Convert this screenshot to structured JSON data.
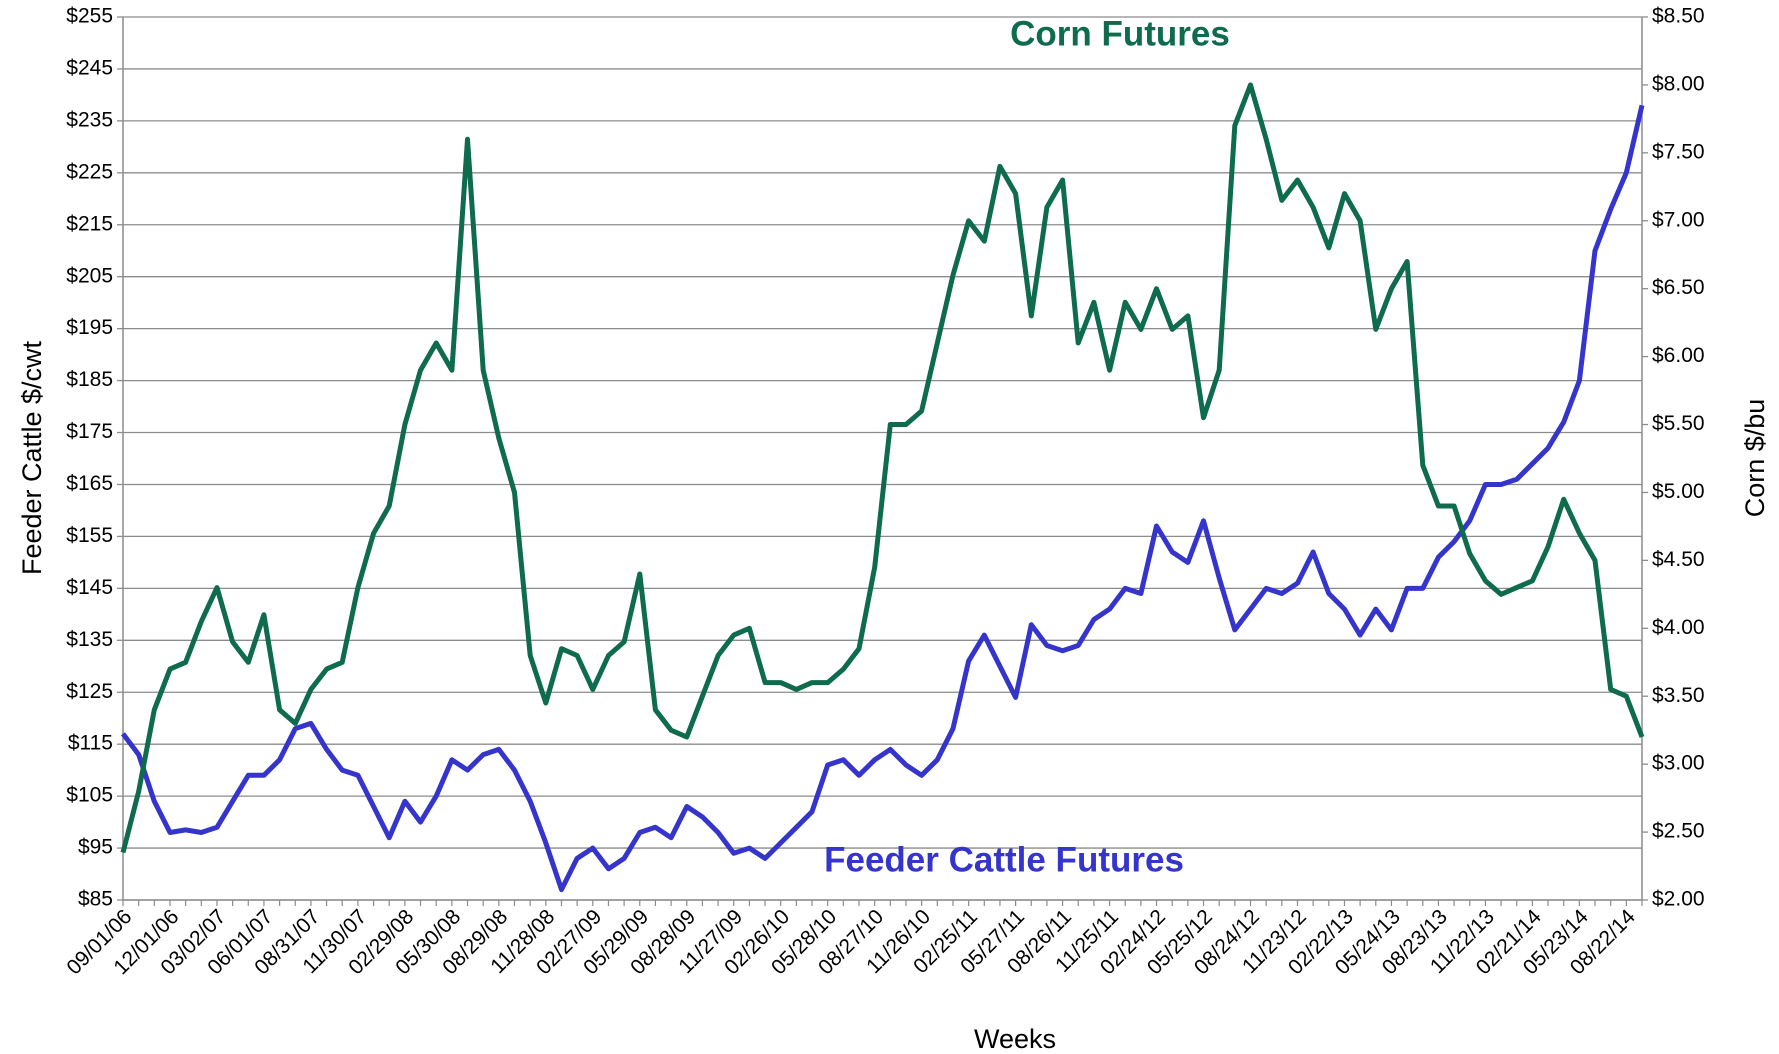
{
  "chart_data": {
    "type": "line",
    "x_label": "Weeks",
    "y_label": "Feeder Cattle $/cwt",
    "y2_label": "Corn $/bu",
    "categories": [
      "09/01/06",
      null,
      null,
      "12/01/06",
      null,
      null,
      "03/02/07",
      null,
      null,
      "06/01/07",
      null,
      null,
      "08/31/07",
      null,
      null,
      "11/30/07",
      null,
      null,
      "02/29/08",
      null,
      null,
      "05/30/08",
      null,
      null,
      "08/29/08",
      null,
      null,
      "11/28/08",
      null,
      null,
      "02/27/09",
      null,
      null,
      "05/29/09",
      null,
      null,
      "08/28/09",
      null,
      null,
      "11/27/09",
      null,
      null,
      "02/26/10",
      null,
      null,
      "05/28/10",
      null,
      null,
      "08/27/10",
      null,
      null,
      "11/26/10",
      null,
      null,
      "02/25/11",
      null,
      null,
      "05/27/11",
      null,
      null,
      "08/26/11",
      null,
      null,
      "11/25/11",
      null,
      null,
      "02/24/12",
      null,
      null,
      "05/25/12",
      null,
      null,
      "08/24/12",
      null,
      null,
      "11/23/12",
      null,
      null,
      "02/22/13",
      null,
      null,
      "05/24/13",
      null,
      null,
      "08/23/13",
      null,
      null,
      "11/22/13",
      null,
      null,
      "02/21/14",
      null,
      null,
      "05/23/14",
      null,
      null,
      "08/22/14",
      null
    ],
    "series": [
      {
        "name": "Feeder Cattle Futures",
        "color": "#3535cc",
        "axis": "y",
        "values": [
          117,
          113,
          104,
          98,
          98.5,
          98,
          99,
          104,
          109,
          109,
          112,
          118,
          119,
          114,
          110,
          109,
          103,
          97,
          104,
          100,
          105,
          112,
          110,
          113,
          114,
          110,
          104,
          96,
          87,
          93,
          95,
          91,
          93,
          98,
          99,
          97,
          103,
          101,
          98,
          94,
          95,
          93,
          96,
          99,
          102,
          111,
          112,
          109,
          112,
          114,
          111,
          109,
          112,
          118,
          131,
          136,
          130,
          124,
          138,
          134,
          133,
          134,
          139,
          141,
          145,
          144,
          157,
          152,
          150,
          158,
          147,
          137,
          141,
          145,
          144,
          146,
          152,
          144,
          141,
          136,
          141,
          137,
          145,
          145,
          151,
          154,
          158,
          165,
          165,
          166,
          169,
          172,
          177,
          185,
          210,
          218,
          225,
          238
        ]
      },
      {
        "name": "Corn Futures",
        "color": "#0e6b4c",
        "axis": "y2",
        "values": [
          2.35,
          2.8,
          3.4,
          3.7,
          3.75,
          4.05,
          4.3,
          3.9,
          3.75,
          4.1,
          3.4,
          3.3,
          3.55,
          3.7,
          3.75,
          4.3,
          4.7,
          4.9,
          5.5,
          5.9,
          6.1,
          5.9,
          7.6,
          5.9,
          5.4,
          5.0,
          3.8,
          3.45,
          3.85,
          3.8,
          3.55,
          3.8,
          3.9,
          4.4,
          3.4,
          3.25,
          3.2,
          3.5,
          3.8,
          3.95,
          4.0,
          3.6,
          3.6,
          3.55,
          3.6,
          3.6,
          3.7,
          3.85,
          4.45,
          5.5,
          5.5,
          5.6,
          6.1,
          6.6,
          7.0,
          6.85,
          7.4,
          7.2,
          6.3,
          7.1,
          7.3,
          6.1,
          6.4,
          5.9,
          6.4,
          6.2,
          6.5,
          6.2,
          6.3,
          5.55,
          5.9,
          7.7,
          8.0,
          7.6,
          7.15,
          7.3,
          7.1,
          6.8,
          7.2,
          7.0,
          6.2,
          6.5,
          6.7,
          5.2,
          4.9,
          4.9,
          4.55,
          4.35,
          4.25,
          4.3,
          4.35,
          4.6,
          4.95,
          4.7,
          4.5,
          3.55,
          3.5,
          3.2
        ]
      }
    ],
    "ylim": [
      85,
      255
    ],
    "yticks": [
      {
        "value": 85,
        "label": "$85"
      },
      {
        "value": 95,
        "label": "$95"
      },
      {
        "value": 105,
        "label": "$105"
      },
      {
        "value": 115,
        "label": "$115"
      },
      {
        "value": 125,
        "label": "$125"
      },
      {
        "value": 135,
        "label": "$135"
      },
      {
        "value": 145,
        "label": "$145"
      },
      {
        "value": 155,
        "label": "$155"
      },
      {
        "value": 165,
        "label": "$165"
      },
      {
        "value": 175,
        "label": "$175"
      },
      {
        "value": 185,
        "label": "$185"
      },
      {
        "value": 195,
        "label": "$195"
      },
      {
        "value": 205,
        "label": "$205"
      },
      {
        "value": 215,
        "label": "$215"
      },
      {
        "value": 225,
        "label": "$225"
      },
      {
        "value": 235,
        "label": "$235"
      },
      {
        "value": 245,
        "label": "$245"
      },
      {
        "value": 255,
        "label": "$255"
      }
    ],
    "y2lim": [
      2,
      8.5
    ],
    "y2ticks": [
      {
        "value": 2,
        "label": "$2.00"
      },
      {
        "value": 2.5,
        "label": "$2.50"
      },
      {
        "value": 3,
        "label": "$3.00"
      },
      {
        "value": 3.5,
        "label": "$3.50"
      },
      {
        "value": 4,
        "label": "$4.00"
      },
      {
        "value": 4.5,
        "label": "$4.50"
      },
      {
        "value": 5,
        "label": "$5.00"
      },
      {
        "value": 5.5,
        "label": "$5.50"
      },
      {
        "value": 6,
        "label": "$6.00"
      },
      {
        "value": 6.5,
        "label": "$6.50"
      },
      {
        "value": 7,
        "label": "$7.00"
      },
      {
        "value": 7.5,
        "label": "$7.50"
      },
      {
        "value": 8,
        "label": "$8.00"
      },
      {
        "value": 8.5,
        "label": "$8.50"
      }
    ],
    "grid": true
  }
}
